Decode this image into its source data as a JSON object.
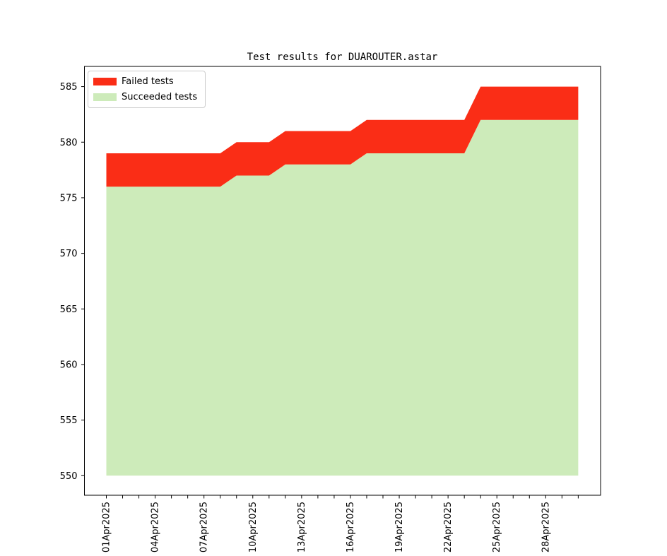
{
  "chart_data": {
    "type": "area",
    "stacked": true,
    "title": "Test results for DUAROUTER.astar",
    "x_unit": "day of April 2025",
    "x": [
      1,
      2,
      3,
      4,
      5,
      6,
      7,
      8,
      9,
      10,
      11,
      12,
      13,
      14,
      15,
      16,
      17,
      18,
      19,
      20,
      21,
      22,
      23,
      24,
      25,
      26,
      27,
      28,
      29,
      30
    ],
    "series": [
      {
        "name": "Succeeded tests",
        "color": "#cdebba",
        "values": [
          576,
          576,
          576,
          576,
          576,
          576,
          576,
          576,
          577,
          577,
          577,
          578,
          578,
          578,
          578,
          578,
          579,
          579,
          579,
          579,
          579,
          579,
          579,
          582,
          582,
          582,
          582,
          582,
          582,
          582
        ]
      },
      {
        "name": "Failed tests",
        "color": "#fa2d16",
        "values": [
          3,
          3,
          3,
          3,
          3,
          3,
          3,
          3,
          3,
          3,
          3,
          3,
          3,
          3,
          3,
          3,
          3,
          3,
          3,
          3,
          3,
          3,
          3,
          3,
          3,
          3,
          3,
          3,
          3,
          3
        ]
      }
    ],
    "stack_totals": [
      579,
      579,
      579,
      579,
      579,
      579,
      579,
      579,
      580,
      580,
      580,
      581,
      581,
      581,
      581,
      581,
      582,
      582,
      582,
      582,
      582,
      582,
      582,
      585,
      585,
      585,
      585,
      585,
      585,
      585
    ],
    "baseline": 550,
    "y_ticks": [
      550,
      555,
      560,
      565,
      570,
      575,
      580,
      585
    ],
    "ylim": [
      548.25,
      586.75
    ],
    "x_tick_days": [
      1,
      2,
      3,
      4,
      5,
      6,
      7,
      8,
      9,
      10,
      11,
      12,
      13,
      14,
      15,
      16,
      17,
      18,
      19,
      20,
      21,
      22,
      23,
      24,
      25,
      26,
      27,
      28,
      29,
      30
    ],
    "x_label_days": [
      1,
      4,
      7,
      10,
      13,
      16,
      19,
      22,
      25,
      28
    ],
    "x_tick_labels": [
      "01Apr2025",
      "04Apr2025",
      "07Apr2025",
      "10Apr2025",
      "13Apr2025",
      "16Apr2025",
      "19Apr2025",
      "22Apr2025",
      "25Apr2025",
      "28Apr2025"
    ],
    "x_tick_label_rotation": -90,
    "grid": false,
    "legend_position": "upper left"
  },
  "legend": {
    "items": [
      {
        "label": "Failed tests",
        "color": "#fa2d16"
      },
      {
        "label": "Succeeded tests",
        "color": "#cdebba"
      }
    ]
  }
}
